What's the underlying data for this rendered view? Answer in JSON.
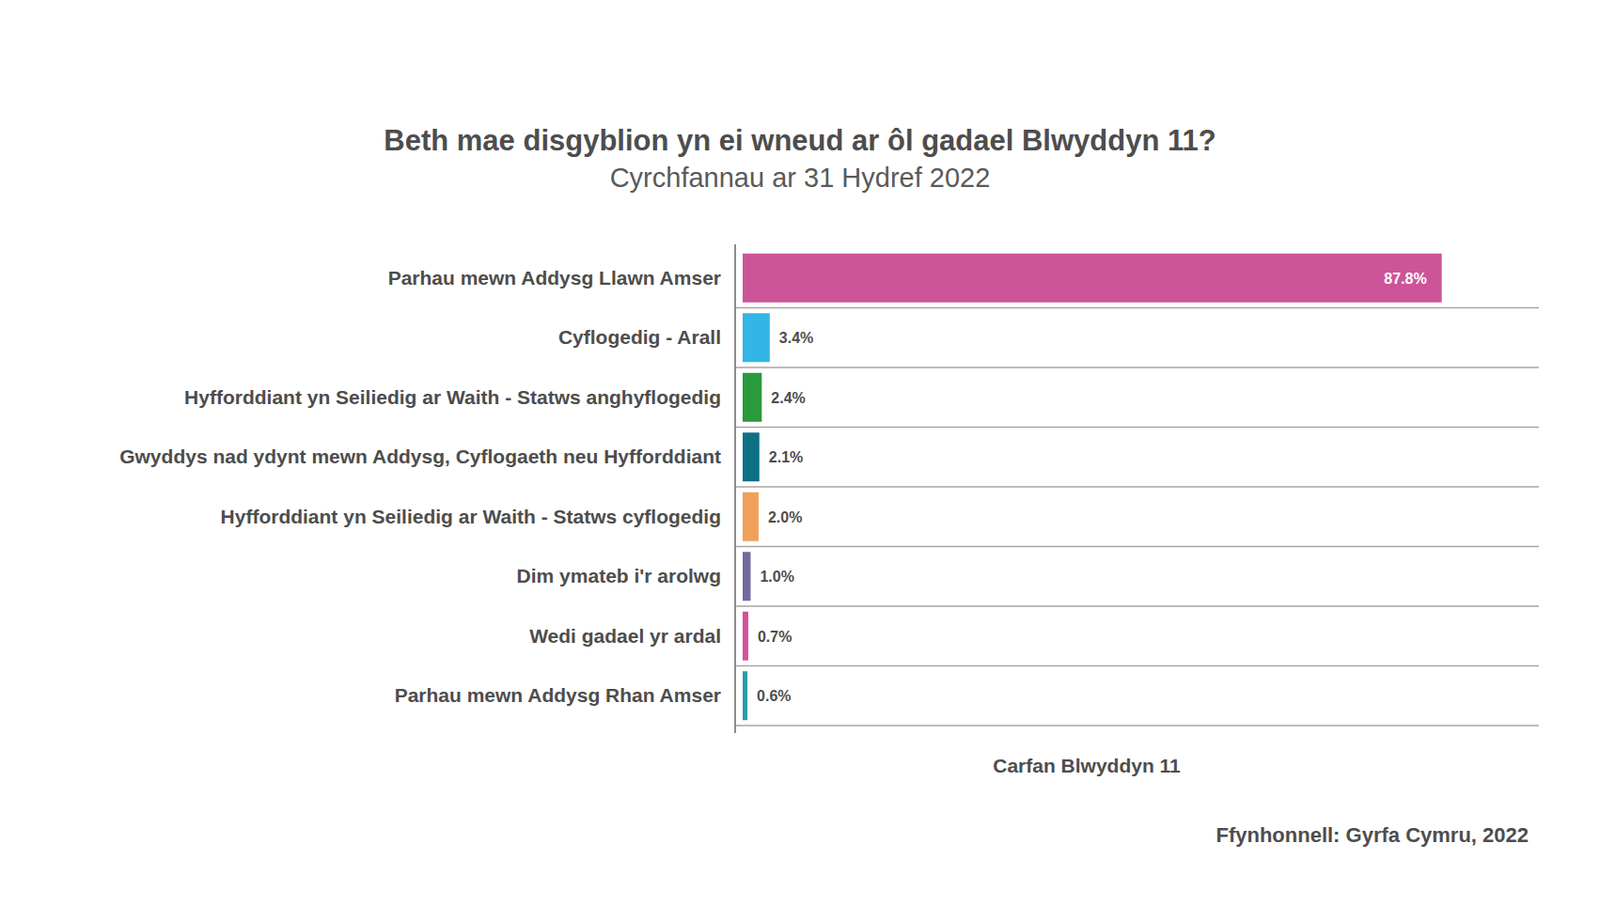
{
  "chart_data": {
    "type": "bar",
    "orientation": "horizontal",
    "title": "Beth mae disgyblion yn ei wneud ar ôl gadael Blwyddyn 11?",
    "subtitle": "Cyrchfannau ar 31 Hydref 2022",
    "xlabel": "Carfan Blwyddyn 11",
    "source": "Ffynhonnell: Gyrfa Cymru, 2022",
    "categories": [
      "Parhau mewn Addysg Llawn Amser",
      "Cyflogedig - Arall",
      "Hyfforddiant yn Seiliedig ar Waith - Statws anghyflogedig",
      "Gwyddys nad ydynt mewn Addysg, Cyflogaeth neu Hyfforddiant",
      "Hyfforddiant yn Seiliedig ar Waith - Statws cyflogedig",
      "Dim ymateb i'r arolwg",
      "Wedi gadael yr ardal",
      "Parhau mewn Addysg Rhan Amser"
    ],
    "values": [
      87.8,
      3.4,
      2.4,
      2.1,
      2.0,
      1.0,
      0.7,
      0.6
    ],
    "value_labels": [
      "87.8%",
      "3.4%",
      "2.4%",
      "2.1%",
      "2.0%",
      "1.0%",
      "0.7%",
      "0.6%"
    ],
    "colors": [
      "#cc5599",
      "#33b5e5",
      "#2a9a3a",
      "#0e7085",
      "#f0a05a",
      "#74699f",
      "#d4519a",
      "#2a9da5"
    ],
    "xlim": [
      0,
      100
    ],
    "data_labels": true,
    "tick_labels": "y"
  }
}
